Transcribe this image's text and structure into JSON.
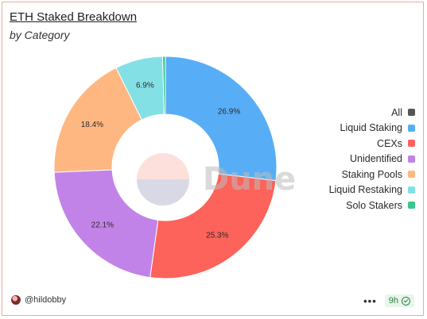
{
  "header": {
    "title": "ETH Staked Breakdown",
    "subtitle": "by Category"
  },
  "chart_data": {
    "type": "pie",
    "donut": true,
    "legend_position": "right",
    "slices": [
      {
        "name": "Liquid Staking",
        "value": 26.9,
        "label": "26.9%",
        "color": "#58aef6"
      },
      {
        "name": "CEXs",
        "value": 25.3,
        "label": "25.3%",
        "color": "#fd625b"
      },
      {
        "name": "Unidentified",
        "value": 22.1,
        "label": "22.1%",
        "color": "#c283e8"
      },
      {
        "name": "Staking Pools",
        "value": 18.4,
        "label": "18.4%",
        "color": "#ffb781"
      },
      {
        "name": "Liquid Restaking",
        "value": 6.9,
        "label": "6.9%",
        "color": "#83e0e5"
      },
      {
        "name": "Solo Stakers",
        "value": 0.4,
        "label": "",
        "color": "#39c690"
      }
    ]
  },
  "legend": {
    "all_label": "All",
    "all_color": "#555555"
  },
  "watermark": "Dune",
  "footer": {
    "username": "@hildobby",
    "age": "9h"
  }
}
